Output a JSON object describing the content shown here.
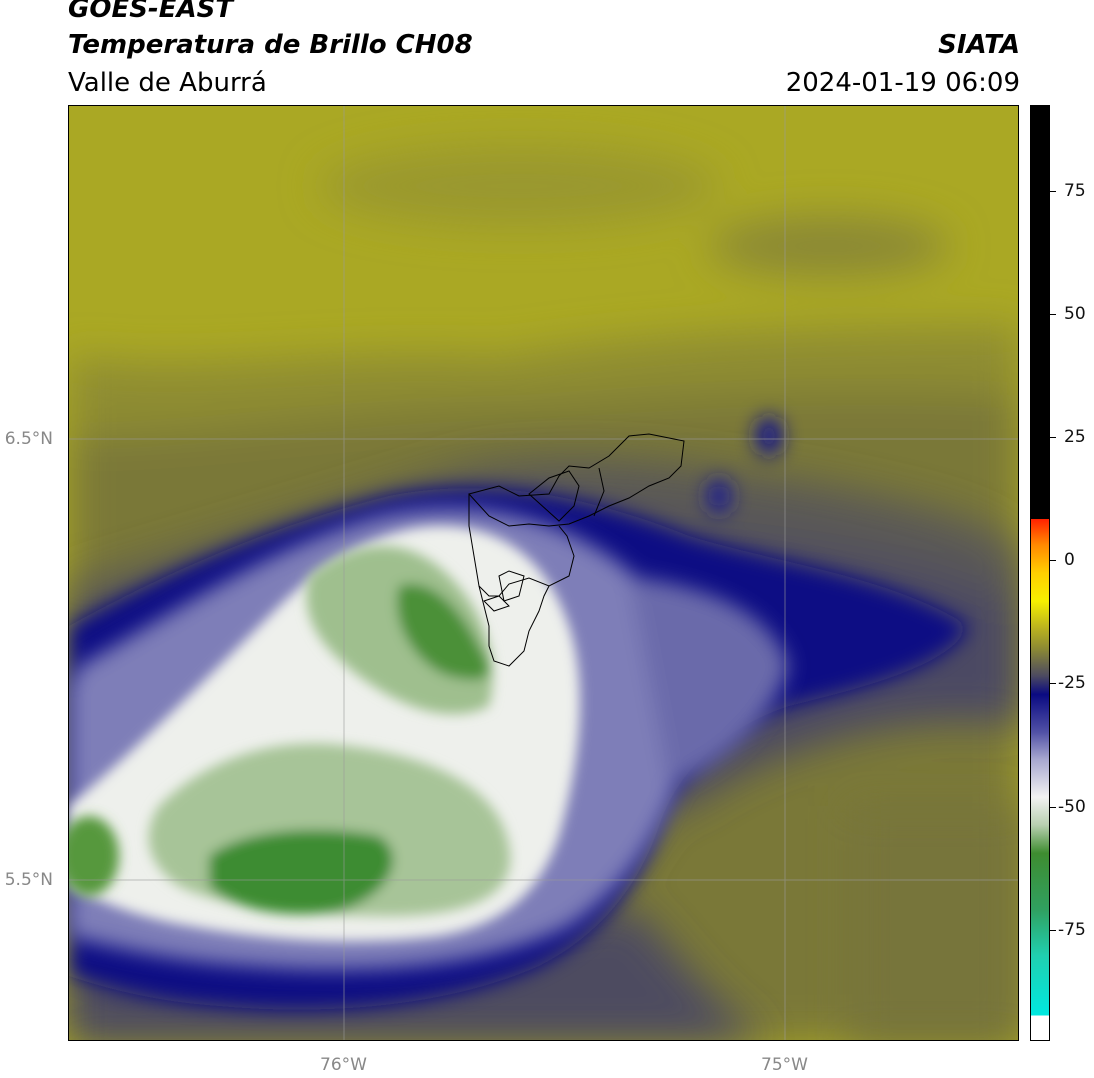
{
  "header": {
    "satellite": "GOES-EAST",
    "product": "Temperatura de Brillo CH08",
    "region": "Valle de Aburrá",
    "org": "SIATA",
    "datetime": "2024-01-19 06:09"
  },
  "map": {
    "lat_ticks": [
      "6.5°N",
      "5.5°N"
    ],
    "lon_ticks": [
      "76°W",
      "75°W"
    ],
    "colors": {
      "clear_olive": "#aaa824",
      "dark_olive": "#77753a",
      "gray_blue": "#4e4c60",
      "navy": "#0a0a82",
      "white": "#f0f2ee",
      "green": "#3e8c30"
    }
  },
  "colorbar": {
    "ticks": [
      "75",
      "50",
      "25",
      "0",
      "-25",
      "-50",
      "-75"
    ]
  }
}
